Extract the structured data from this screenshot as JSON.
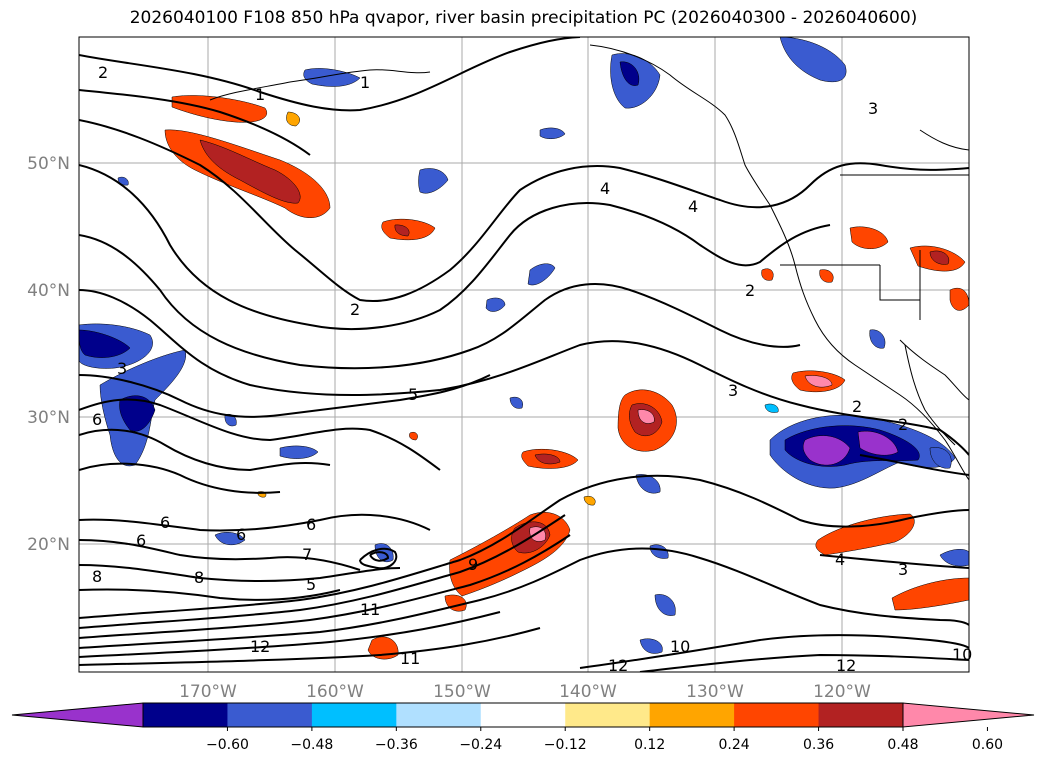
{
  "title": "2026040100 F108 850 hPa qvapor, river basin precipitation PC (2026040300 - 2026040600)",
  "map": {
    "lon_labels": [
      "170°W",
      "160°W",
      "150°W",
      "140°W",
      "130°W",
      "120°W"
    ],
    "lat_labels": [
      "50°N",
      "40°N",
      "30°N",
      "20°N"
    ],
    "contour_labels": [
      "2",
      "1",
      "1",
      "2",
      "3",
      "4",
      "4",
      "2",
      "2",
      "5",
      "6",
      "3",
      "3",
      "2",
      "6",
      "6",
      "6",
      "8",
      "8",
      "5",
      "7",
      "9",
      "11",
      "12",
      "10",
      "11",
      "12",
      "12",
      "10",
      "4",
      "3",
      "6"
    ]
  },
  "colorbar": {
    "colors": [
      "#9932cc",
      "#00008b",
      "#3a5bd0",
      "#00bfff",
      "#b0e0ff",
      "#ffffff",
      "#ffe98a",
      "#ffa500",
      "#ff4500",
      "#b22222",
      "#ff88aa"
    ],
    "tick_labels": [
      "−0.60",
      "−0.48",
      "−0.36",
      "−0.24",
      "−0.12",
      "0.12",
      "0.24",
      "0.36",
      "0.48",
      "0.60"
    ]
  }
}
